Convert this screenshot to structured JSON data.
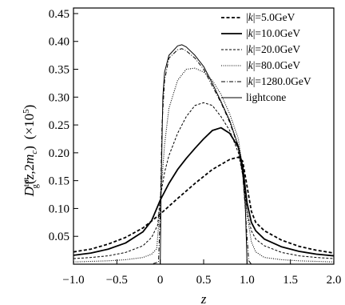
{
  "chart_data": {
    "type": "line",
    "xlabel": "z",
    "ylabel_main": "D",
    "ylabel_sup": "tot",
    "ylabel_sub": "g",
    "ylabel_args_open": "(",
    "ylabel_args_z": "z",
    "ylabel_args_mid": ",2",
    "ylabel_args_m": "m",
    "ylabel_args_c": "c",
    "ylabel_args_close": ")",
    "ylabel_scale_pre": "(×10",
    "ylabel_scale_exp": "5",
    "ylabel_scale_post": ")",
    "xlim": [
      -1.0,
      2.0
    ],
    "ylim": [
      0.0,
      0.46
    ],
    "xticks": [
      -1.0,
      -0.5,
      0.0,
      0.5,
      1.0,
      1.5,
      2.0
    ],
    "xtick_labels": [
      "−1.0",
      "−0.5",
      "0",
      "0.5",
      "1.0",
      "1.5",
      "2.0"
    ],
    "yticks": [
      0.05,
      0.1,
      0.15,
      0.2,
      0.25,
      0.3,
      0.35,
      0.4,
      0.45
    ],
    "ytick_labels": [
      "0.05",
      "0.10",
      "0.15",
      "0.20",
      "0.25",
      "0.30",
      "0.35",
      "0.40",
      "0.45"
    ],
    "grid": false,
    "legend_position": "top-right",
    "series": [
      {
        "name": "|k|=5.0GeV",
        "legend_prefix": "|",
        "legend_k": "k",
        "legend_suffix": "|=5.0GeV",
        "dash": "4,2.5",
        "width": 1.8,
        "x": [
          -1.0,
          -0.8,
          -0.6,
          -0.4,
          -0.2,
          0.0,
          0.2,
          0.4,
          0.6,
          0.8,
          0.9,
          0.95,
          1.0,
          1.05,
          1.1,
          1.2,
          1.4,
          1.6,
          1.8,
          2.0
        ],
        "y": [
          0.022,
          0.027,
          0.036,
          0.048,
          0.065,
          0.09,
          0.118,
          0.145,
          0.17,
          0.188,
          0.192,
          0.185,
          0.14,
          0.095,
          0.075,
          0.06,
          0.043,
          0.032,
          0.025,
          0.02
        ]
      },
      {
        "name": "|k|=10.0GeV",
        "legend_prefix": "|",
        "legend_k": "k",
        "legend_suffix": "|=10.0GeV",
        "dash": "",
        "width": 1.8,
        "x": [
          -1.0,
          -0.8,
          -0.6,
          -0.4,
          -0.2,
          -0.1,
          0.0,
          0.1,
          0.2,
          0.3,
          0.4,
          0.5,
          0.6,
          0.7,
          0.8,
          0.9,
          0.95,
          1.0,
          1.05,
          1.1,
          1.2,
          1.4,
          1.6,
          1.8,
          2.0
        ],
        "y": [
          0.016,
          0.02,
          0.027,
          0.038,
          0.058,
          0.078,
          0.115,
          0.145,
          0.17,
          0.19,
          0.208,
          0.225,
          0.24,
          0.245,
          0.235,
          0.21,
          0.175,
          0.11,
          0.075,
          0.06,
          0.045,
          0.031,
          0.023,
          0.018,
          0.015
        ]
      },
      {
        "name": "|k|=20.0GeV",
        "legend_prefix": "|",
        "legend_k": "k",
        "legend_suffix": "|=20.0GeV",
        "dash": "3,2",
        "width": 1.0,
        "x": [
          -1.0,
          -0.8,
          -0.6,
          -0.4,
          -0.2,
          -0.1,
          -0.03,
          0.0,
          0.05,
          0.1,
          0.2,
          0.3,
          0.4,
          0.5,
          0.6,
          0.7,
          0.8,
          0.9,
          0.95,
          1.0,
          1.05,
          1.1,
          1.2,
          1.4,
          1.6,
          1.8,
          2.0
        ],
        "y": [
          0.01,
          0.012,
          0.015,
          0.021,
          0.033,
          0.048,
          0.07,
          0.12,
          0.165,
          0.195,
          0.235,
          0.265,
          0.285,
          0.29,
          0.285,
          0.265,
          0.24,
          0.2,
          0.16,
          0.095,
          0.06,
          0.045,
          0.033,
          0.021,
          0.015,
          0.012,
          0.01
        ]
      },
      {
        "name": "|k|=80.0GeV",
        "legend_prefix": "|",
        "legend_k": "k",
        "legend_suffix": "|=80.0GeV",
        "dash": "1,1.6",
        "width": 1.1,
        "x": [
          -1.0,
          -0.8,
          -0.6,
          -0.4,
          -0.2,
          -0.1,
          -0.04,
          0.0,
          0.05,
          0.1,
          0.2,
          0.3,
          0.4,
          0.5,
          0.6,
          0.7,
          0.8,
          0.9,
          0.95,
          1.0,
          1.05,
          1.1,
          1.2,
          1.4,
          1.6,
          1.8,
          2.0
        ],
        "y": [
          0.004,
          0.005,
          0.006,
          0.008,
          0.012,
          0.018,
          0.028,
          0.11,
          0.215,
          0.28,
          0.33,
          0.35,
          0.352,
          0.345,
          0.33,
          0.305,
          0.27,
          0.225,
          0.17,
          0.09,
          0.04,
          0.022,
          0.012,
          0.008,
          0.006,
          0.005,
          0.004
        ]
      },
      {
        "name": "|k|=1280.0GeV",
        "legend_prefix": "|",
        "legend_k": "k",
        "legend_suffix": "|=1280.0GeV",
        "dash": "5,2,1,2",
        "width": 1.0,
        "x": [
          -1.0,
          -0.5,
          -0.1,
          -0.02,
          0.0,
          0.02,
          0.05,
          0.1,
          0.2,
          0.25,
          0.3,
          0.4,
          0.5,
          0.6,
          0.7,
          0.8,
          0.9,
          0.95,
          0.98,
          1.0,
          1.02,
          1.05,
          1.1,
          1.5,
          2.0
        ],
        "y": [
          0.0,
          0.0,
          0.0,
          0.004,
          0.09,
          0.25,
          0.33,
          0.37,
          0.385,
          0.387,
          0.383,
          0.37,
          0.35,
          0.32,
          0.29,
          0.255,
          0.21,
          0.16,
          0.1,
          0.05,
          0.006,
          0.0,
          0.0,
          0.0,
          0.0
        ]
      },
      {
        "name": "lightcone",
        "legend_prefix": "",
        "legend_k": "",
        "legend_suffix": "lightcone",
        "dash": "",
        "width": 1.0,
        "x": [
          -1.0,
          -0.5,
          -0.01,
          0.0,
          0.01,
          0.03,
          0.05,
          0.1,
          0.2,
          0.25,
          0.3,
          0.4,
          0.5,
          0.6,
          0.7,
          0.8,
          0.9,
          0.95,
          0.98,
          0.995,
          1.0,
          1.5,
          2.0
        ],
        "y": [
          0.0,
          0.0,
          0.0,
          0.0,
          0.14,
          0.3,
          0.345,
          0.375,
          0.392,
          0.394,
          0.39,
          0.375,
          0.355,
          0.325,
          0.292,
          0.258,
          0.212,
          0.165,
          0.105,
          0.03,
          0.0,
          0.0,
          0.0
        ]
      }
    ]
  }
}
